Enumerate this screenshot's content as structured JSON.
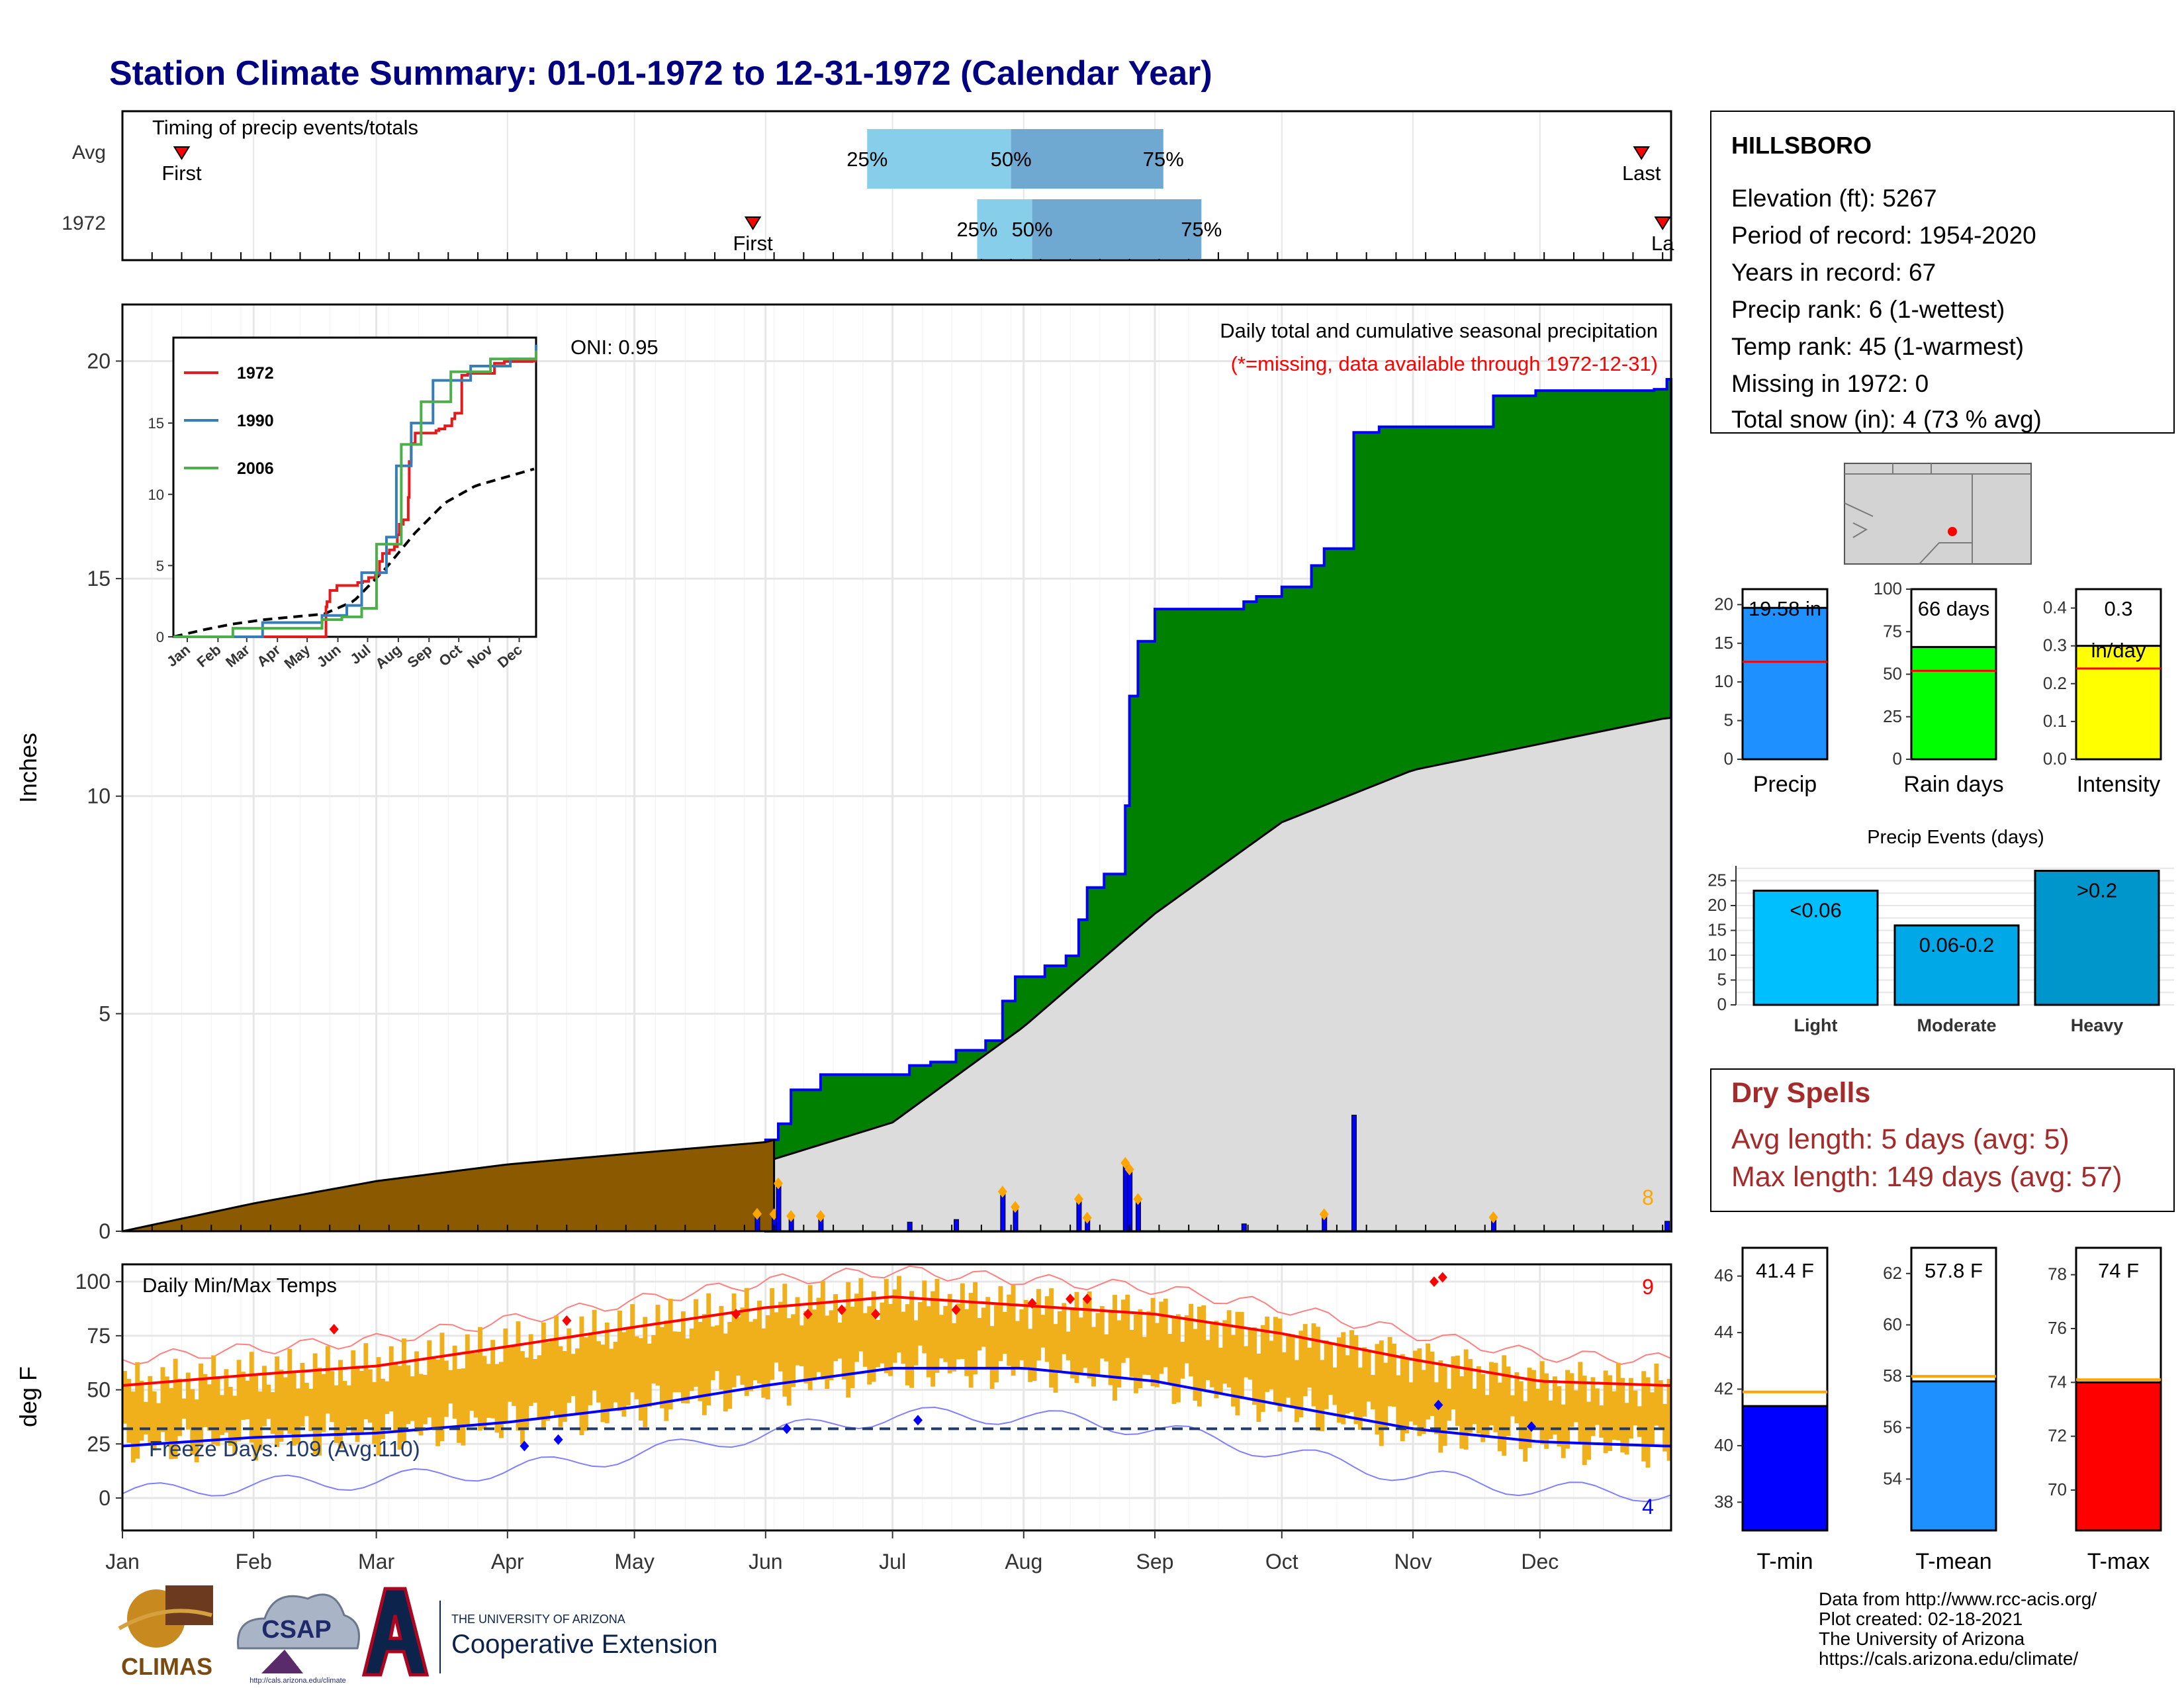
{
  "title": "Station Climate Summary: 01-01-1972 to 12-31-1972 (Calendar Year)",
  "colors": {
    "title": "#000080",
    "precip_cumulative_1972": "#008000",
    "precip_avg_area": "#dcdcdc",
    "winter_precip": "#8b5a00",
    "daily_precip_bars": "#0000ff",
    "temp_range_bars": "#f0b01c",
    "avg_max_line": "#ff0000",
    "avg_min_line": "#0000ff",
    "quartile_light": "#87ceeb",
    "quartile_dark": "#6fa8d0"
  },
  "timing": {
    "title": "Timing of precip events/totals",
    "rows": [
      {
        "label": "Avg",
        "first_label": "First",
        "last_label": "Last",
        "first_date": "1972-01-15",
        "last_date": "1972-12-25",
        "p25_date": "1972-06-25",
        "p50_date": "1972-07-29",
        "p75_date": "1972-09-03",
        "p25_label": "25%",
        "p50_label": "50%",
        "p75_label": "75%"
      },
      {
        "label": "1972",
        "first_label": "First",
        "last_label": "La",
        "first_date": "1972-05-29",
        "last_date": "1972-12-30",
        "p25_date": "1972-07-21",
        "p50_date": "1972-08-03",
        "p75_date": "1972-09-12",
        "p25_label": "25%",
        "p50_label": "50%",
        "p75_label": "75%"
      }
    ]
  },
  "main": {
    "annotation_title": "Daily total and cumulative seasonal precipitation",
    "annotation_missing": "(*=missing, data available through 1972-12-31)",
    "oni_label": "ONI: 0.95",
    "ylabel": "Inches",
    "yticks": [
      "0",
      "5",
      "10",
      "15",
      "20"
    ],
    "count_label": "8"
  },
  "inset": {
    "series": [
      {
        "name": "1972",
        "color": "#e41a1c"
      },
      {
        "name": "1990",
        "color": "#377eb8"
      },
      {
        "name": "2006",
        "color": "#4daf4a"
      }
    ],
    "yticks": [
      "0",
      "5",
      "10",
      "15"
    ],
    "xticks": [
      "Jan",
      "Feb",
      "Mar",
      "Apr",
      "May",
      "Jun",
      "Jul",
      "Aug",
      "Sep",
      "Oct",
      "Nov",
      "Dec"
    ]
  },
  "temps": {
    "title": "Daily Min/Max Temps",
    "ylabel": "deg F",
    "yticks": [
      "0",
      "25",
      "50",
      "75",
      "100"
    ],
    "freeze_label": "Freeze Days: 109 (Avg:110)",
    "freeze_threshold": 32,
    "record_high_count": "9",
    "record_low_count": "4"
  },
  "month_labels": [
    "Jan",
    "Feb",
    "Mar",
    "Apr",
    "May",
    "Jun",
    "Jul",
    "Aug",
    "Sep",
    "Oct",
    "Nov",
    "Dec"
  ],
  "station": {
    "name": "HILLSBORO",
    "lines": [
      "Elevation (ft): 5267",
      "Period of record: 1954-2020",
      "Years in record: 67",
      "Precip rank: 6 (1-wettest)",
      "Temp rank: 45 (1-warmest)",
      "Missing in 1972: 0",
      "Total snow (in): 4 (73 % avg)"
    ]
  },
  "mini_bars": [
    {
      "label": "Precip",
      "value": 19.58,
      "avg": 12.6,
      "display": "19.58 in",
      "display2": "",
      "max": 22,
      "ticks": [
        0,
        5,
        10,
        15,
        20
      ],
      "color": "#1e90ff"
    },
    {
      "label": "Rain days",
      "value": 66,
      "avg": 52,
      "display": "66 days",
      "display2": "",
      "max": 100,
      "ticks": [
        0,
        25,
        50,
        75,
        100
      ],
      "color": "#00ff00"
    },
    {
      "label": "Intensity",
      "value": 0.3,
      "avg": 0.24,
      "display": "0.3",
      "display2": "in/day",
      "max": 0.45,
      "ticks": [
        0.0,
        0.1,
        0.2,
        0.3,
        0.4
      ],
      "color": "#ffff00"
    }
  ],
  "precip_events": {
    "title": "Precip Events (days)",
    "yticks": [
      "0",
      "5",
      "10",
      "15",
      "20",
      "25"
    ],
    "bars": [
      {
        "category": "Light",
        "label": "<0.06",
        "value": 23,
        "color": "#00bfff"
      },
      {
        "category": "Moderate",
        "label": "0.06-0.2",
        "value": 16,
        "color": "#00a8e8"
      },
      {
        "category": "Heavy",
        "label": ">0.2",
        "value": 27,
        "color": "#0096cc"
      }
    ]
  },
  "dry_spells": {
    "title": "Dry Spells",
    "avg_line": "Avg length: 5 days (avg: 5)",
    "max_line": "Max length: 149 days (avg: 57)",
    "color": "#a52a2a"
  },
  "temp_bars": [
    {
      "label": "T-min",
      "value": 41.4,
      "avg": 41.9,
      "display": "41.4 F",
      "min": 37,
      "max": 47,
      "ticks": [
        38,
        40,
        42,
        44,
        46
      ],
      "color": "#0000ff"
    },
    {
      "label": "T-mean",
      "value": 57.8,
      "avg": 58.0,
      "display": "57.8 F",
      "min": 52,
      "max": 63,
      "ticks": [
        54,
        56,
        58,
        60,
        62
      ],
      "color": "#1e90ff"
    },
    {
      "label": "T-max",
      "value": 74,
      "avg": 74.1,
      "display": "74 F",
      "min": 68.5,
      "max": 79,
      "ticks": [
        70,
        72,
        74,
        76,
        78
      ],
      "color": "#ff0000"
    }
  ],
  "logos": {
    "climas": "CLIMAS",
    "csap": "CSAP",
    "csap_url": "http://cals.arizona.edu/climate",
    "ua_small": "THE UNIVERSITY OF ARIZONA",
    "ua_big": "Cooperative Extension"
  },
  "footer": [
    "Data from http://www.rcc-acis.org/",
    "Plot created: 02-18-2021",
    "The University of Arizona",
    "https://cals.arizona.edu/climate/"
  ],
  "chart_data": [
    {
      "type": "area",
      "title": "Daily total and cumulative seasonal precipitation",
      "ylabel": "Inches",
      "ylim": [
        0,
        21.3
      ],
      "series": [
        {
          "name": "1972",
          "x": [
            "1972-01-01",
            "1972-06-03",
            "1972-06-04",
            "1972-06-07",
            "1972-06-14",
            "1972-06-28",
            "1972-07-05",
            "1972-07-10",
            "1972-07-16",
            "1972-07-23",
            "1972-07-27",
            "1972-07-30",
            "1972-08-06",
            "1972-08-11",
            "1972-08-14",
            "1972-08-16",
            "1972-08-20",
            "1972-08-25",
            "1972-08-26",
            "1972-08-28",
            "1972-09-01",
            "1972-09-22",
            "1972-09-25",
            "1972-10-01",
            "1972-10-08",
            "1972-10-11",
            "1972-10-18",
            "1972-10-24",
            "1972-11-20",
            "1972-11-30",
            "1972-12-28",
            "1972-12-31"
          ],
          "y": [
            0.0,
            2.1,
            2.47,
            3.25,
            3.6,
            3.6,
            3.81,
            3.89,
            4.16,
            4.38,
            5.29,
            5.85,
            6.1,
            6.33,
            7.16,
            7.9,
            8.21,
            9.78,
            12.3,
            13.56,
            14.3,
            14.47,
            14.59,
            14.81,
            15.3,
            15.69,
            18.36,
            18.49,
            19.2,
            19.32,
            19.35,
            19.58
          ]
        },
        {
          "name": "Avg",
          "x": [
            "1972-01-01",
            "1972-02-01",
            "1972-03-01",
            "1972-04-01",
            "1972-05-01",
            "1972-06-01",
            "1972-07-01",
            "1972-08-01",
            "1972-09-01",
            "1972-10-01",
            "1972-11-01",
            "1972-12-01",
            "1972-12-31"
          ],
          "y": [
            0.0,
            0.5,
            0.9,
            1.2,
            1.4,
            1.6,
            2.5,
            4.7,
            7.3,
            9.4,
            10.6,
            11.2,
            11.8
          ]
        },
        {
          "name": "Daily precip",
          "x": [
            "1972-05-30",
            "1972-06-03",
            "1972-06-04",
            "1972-06-07",
            "1972-06-14",
            "1972-07-05",
            "1972-07-16",
            "1972-07-27",
            "1972-07-30",
            "1972-08-14",
            "1972-08-16",
            "1972-08-25",
            "1972-08-26",
            "1972-08-28",
            "1972-09-22",
            "1972-10-11",
            "1972-10-18",
            "1972-11-20",
            "1972-12-31"
          ],
          "y": [
            0.4,
            0.39,
            1.1,
            0.35,
            0.35,
            0.21,
            0.27,
            0.91,
            0.56,
            0.74,
            0.31,
            1.57,
            1.42,
            0.74,
            0.17,
            0.39,
            2.67,
            0.32,
            0.23
          ]
        }
      ]
    },
    {
      "type": "line",
      "title": "Daily Min/Max Temps",
      "ylabel": "deg F",
      "ylim": [
        -15,
        108
      ],
      "series": [
        {
          "name": "Avg max",
          "x": [
            "1972-01-01",
            "1972-02-01",
            "1972-03-01",
            "1972-04-01",
            "1972-05-01",
            "1972-06-01",
            "1972-07-01",
            "1972-08-01",
            "1972-09-01",
            "1972-10-01",
            "1972-11-01",
            "1972-12-01",
            "1972-12-31"
          ],
          "y": [
            52,
            57,
            61,
            70,
            79,
            88,
            93,
            89,
            85,
            76,
            64,
            54,
            52
          ]
        },
        {
          "name": "Avg min",
          "x": [
            "1972-01-01",
            "1972-02-01",
            "1972-03-01",
            "1972-04-01",
            "1972-05-01",
            "1972-06-01",
            "1972-07-01",
            "1972-08-01",
            "1972-09-01",
            "1972-10-01",
            "1972-11-01",
            "1972-12-01",
            "1972-12-31"
          ],
          "y": [
            24,
            28,
            30,
            35,
            42,
            52,
            60,
            60,
            54,
            43,
            32,
            26,
            24
          ]
        },
        {
          "name": "Freeze threshold",
          "x": [
            "1972-01-01",
            "1972-12-31"
          ],
          "y": [
            32,
            32
          ]
        }
      ]
    },
    {
      "type": "bar",
      "title": "Precip Events (days)",
      "categories": [
        "Light",
        "Moderate",
        "Heavy"
      ],
      "values": [
        23,
        16,
        27
      ],
      "ylim": [
        0,
        28
      ]
    },
    {
      "type": "bar",
      "categories": [
        "Precip",
        "Rain days",
        "Intensity"
      ],
      "values": [
        19.58,
        66,
        0.3
      ]
    },
    {
      "type": "bar",
      "categories": [
        "T-min",
        "T-mean",
        "T-max"
      ],
      "values": [
        41.4,
        57.8,
        74
      ]
    }
  ]
}
